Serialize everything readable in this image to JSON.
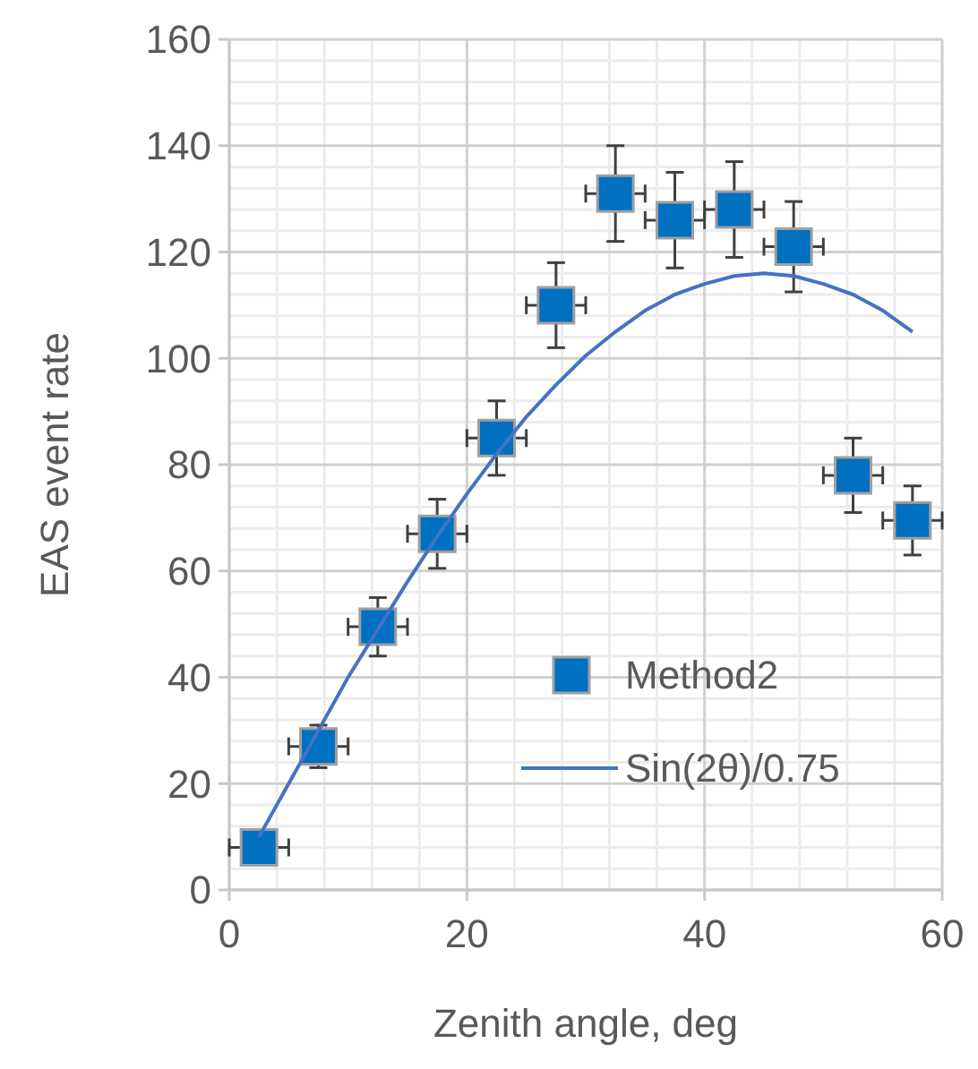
{
  "chart_data": {
    "type": "scatter",
    "xlabel": "Zenith angle, deg",
    "ylabel": "EAS event rate",
    "xlim": [
      0,
      60
    ],
    "ylim": [
      0,
      160
    ],
    "xticks": [
      0,
      20,
      40,
      60
    ],
    "yticks": [
      0,
      20,
      40,
      60,
      80,
      100,
      120,
      140,
      160
    ],
    "grid": true,
    "legend": "bottom right",
    "series": [
      {
        "name": "Method2",
        "marker": "square",
        "color": "#0070c0",
        "x": [
          2.5,
          7.5,
          12.5,
          17.5,
          22.5,
          27.5,
          32.5,
          37.5,
          42.5,
          47.5,
          52.5,
          57.5
        ],
        "values": [
          8,
          27,
          49.5,
          67,
          85,
          110,
          131,
          126,
          128,
          121,
          78,
          69.5
        ],
        "errors": [
          null,
          4,
          5.5,
          6.5,
          7,
          8,
          9,
          9,
          9,
          8.5,
          7,
          6.5
        ],
        "xerrors": [
          2.5,
          2.5,
          2.5,
          2.5,
          2.5,
          2.5,
          2.5,
          2.5,
          2.5,
          2.5,
          2.5,
          2.5
        ]
      },
      {
        "name": "Sin(2θ)/0.75",
        "type": "line",
        "marker": "none",
        "line_style": "solid",
        "color": "#4472c4",
        "x": [
          2.5,
          5,
          7.5,
          10,
          12.5,
          15,
          17.5,
          20,
          22.5,
          25,
          27.5,
          30,
          32.5,
          35,
          37.5,
          40,
          42.5,
          45,
          47.5,
          50,
          52.5,
          55,
          57.5
        ],
        "values": [
          10,
          20,
          30,
          40,
          49,
          58,
          66.5,
          74.5,
          82,
          89,
          95,
          100.5,
          105,
          109,
          112,
          114,
          115.5,
          116,
          115.5,
          114,
          112,
          109,
          105
        ]
      }
    ]
  }
}
